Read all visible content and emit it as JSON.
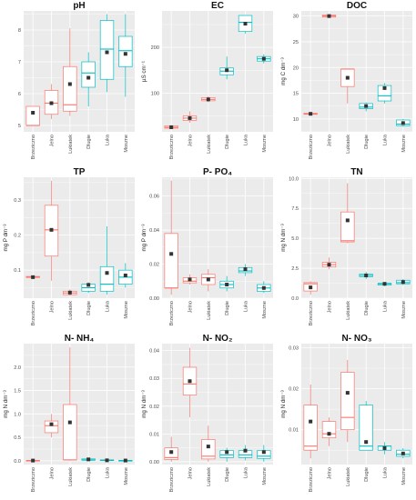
{
  "colors": {
    "red": "#f8766d",
    "teal": "#00bfc4",
    "panel_bg": "#ebebeb",
    "grid_line": "#ffffff",
    "mean_marker": "#333333"
  },
  "chart_data": [
    {
      "type": "box",
      "title": "pH",
      "ylabel": "",
      "ylim": [
        4.8,
        8.6
      ],
      "yticks": [
        5,
        6,
        7,
        8
      ],
      "categories": [
        "Brzeziczno",
        "Jelno",
        "Lukiatek",
        "Dlugie",
        "Luka",
        "Moszne"
      ],
      "series_color_index": [
        0,
        0,
        0,
        1,
        1,
        1
      ],
      "boxes": [
        {
          "min": 5.0,
          "q1": 5.0,
          "median": 5.0,
          "q3": 5.6,
          "max": 5.6,
          "mean": 5.4
        },
        {
          "min": 5.2,
          "q1": 5.35,
          "median": 5.7,
          "q3": 6.1,
          "max": 6.3,
          "mean": 5.7
        },
        {
          "min": 5.3,
          "q1": 5.45,
          "median": 5.65,
          "q3": 6.85,
          "max": 8.05,
          "mean": 6.3
        },
        {
          "min": 5.6,
          "q1": 6.2,
          "median": 6.65,
          "q3": 7.0,
          "max": 7.3,
          "mean": 6.5
        },
        {
          "min": 6.05,
          "q1": 6.45,
          "median": 7.4,
          "q3": 8.3,
          "max": 8.5,
          "mean": 7.3
        },
        {
          "min": 5.9,
          "q1": 6.85,
          "median": 7.35,
          "q3": 7.8,
          "max": 8.5,
          "mean": 7.25
        }
      ]
    },
    {
      "type": "box",
      "title": "EC",
      "ylabel": "µS cm⁻¹",
      "ylim": [
        15,
        280
      ],
      "yticks": [
        100,
        200
      ],
      "categories": [
        "Brzeziczno",
        "Jelno",
        "Lukiatek",
        "Dlugie",
        "Luka",
        "Moszne"
      ],
      "series_color_index": [
        0,
        0,
        0,
        1,
        1,
        1
      ],
      "boxes": [
        {
          "min": 22,
          "q1": 23,
          "median": 25,
          "q3": 28,
          "max": 30,
          "mean": 25
        },
        {
          "min": 35,
          "q1": 40,
          "median": 45,
          "q3": 50,
          "max": 60,
          "mean": 45
        },
        {
          "min": 80,
          "q1": 83,
          "median": 86,
          "q3": 90,
          "max": 93,
          "mean": 86
        },
        {
          "min": 130,
          "q1": 140,
          "median": 148,
          "q3": 155,
          "max": 180,
          "mean": 150
        },
        {
          "min": 230,
          "q1": 235,
          "median": 255,
          "q3": 270,
          "max": 270,
          "mean": 252
        },
        {
          "min": 165,
          "q1": 170,
          "median": 175,
          "q3": 180,
          "max": 185,
          "mean": 175
        }
      ]
    },
    {
      "type": "box",
      "title": "DOC",
      "ylabel": "mg C dm⁻³",
      "ylim": [
        7.5,
        31
      ],
      "yticks": [
        10,
        15,
        20,
        25,
        30
      ],
      "categories": [
        "Brzeziczno",
        "Jelno",
        "Lukiatek",
        "Dlugie",
        "Luka",
        "Moszne"
      ],
      "series_color_index": [
        0,
        0,
        0,
        1,
        1,
        1
      ],
      "boxes": [
        {
          "min": 10.8,
          "q1": 10.9,
          "median": 11.0,
          "q3": 11.1,
          "max": 11.2,
          "mean": 11.0
        },
        {
          "min": 29.6,
          "q1": 29.8,
          "median": 30.0,
          "q3": 30.2,
          "max": 30.3,
          "mean": 30.0
        },
        {
          "min": 13.0,
          "q1": 16.3,
          "median": 19.7,
          "q3": 19.7,
          "max": 19.7,
          "mean": 18.0
        },
        {
          "min": 11.5,
          "q1": 12.0,
          "median": 12.3,
          "q3": 13.0,
          "max": 13.2,
          "mean": 12.5
        },
        {
          "min": 13.0,
          "q1": 13.5,
          "median": 14.5,
          "q3": 16.5,
          "max": 17.0,
          "mean": 16.0
        },
        {
          "min": 8.5,
          "q1": 8.7,
          "median": 9.0,
          "q3": 9.8,
          "max": 10.0,
          "mean": 9.2
        }
      ]
    },
    {
      "type": "box",
      "title": "TP",
      "ylabel": "mg P dm⁻³",
      "ylim": [
        0.02,
        0.365
      ],
      "yticks": [
        0.1,
        0.2,
        0.3
      ],
      "categories": [
        "Brzeziczno",
        "Jelno",
        "Lukiatek",
        "Dlugie",
        "Luka",
        "Moszne"
      ],
      "series_color_index": [
        0,
        0,
        0,
        1,
        1,
        1
      ],
      "boxes": [
        {
          "min": 0.078,
          "q1": 0.079,
          "median": 0.08,
          "q3": 0.082,
          "max": 0.083,
          "mean": 0.08
        },
        {
          "min": 0.07,
          "q1": 0.14,
          "median": 0.215,
          "q3": 0.285,
          "max": 0.355,
          "mean": 0.215
        },
        {
          "min": 0.027,
          "q1": 0.03,
          "median": 0.035,
          "q3": 0.04,
          "max": 0.045,
          "mean": 0.036
        },
        {
          "min": 0.035,
          "q1": 0.04,
          "median": 0.05,
          "q3": 0.06,
          "max": 0.065,
          "mean": 0.058
        },
        {
          "min": 0.03,
          "q1": 0.04,
          "median": 0.06,
          "q3": 0.11,
          "max": 0.225,
          "mean": 0.092
        },
        {
          "min": 0.05,
          "q1": 0.06,
          "median": 0.08,
          "q3": 0.1,
          "max": 0.12,
          "mean": 0.085
        }
      ]
    },
    {
      "type": "box",
      "title": "P- PO₄",
      "ylabel": "mg P dm⁻³",
      "ylim": [
        0,
        0.071
      ],
      "yticks": [
        0.0,
        0.02,
        0.04,
        0.06
      ],
      "categories": [
        "Brzeziczno",
        "Jelno",
        "Lukiatek",
        "Dlugie",
        "Luka",
        "Moszne"
      ],
      "series_color_index": [
        0,
        0,
        0,
        1,
        1,
        1
      ],
      "boxes": [
        {
          "min": 0.002,
          "q1": 0.006,
          "median": 0.006,
          "q3": 0.038,
          "max": 0.069,
          "mean": 0.026
        },
        {
          "min": 0.008,
          "q1": 0.009,
          "median": 0.01,
          "q3": 0.012,
          "max": 0.014,
          "mean": 0.011
        },
        {
          "min": 0.004,
          "q1": 0.008,
          "median": 0.012,
          "q3": 0.014,
          "max": 0.017,
          "mean": 0.011
        },
        {
          "min": 0.004,
          "q1": 0.006,
          "median": 0.008,
          "q3": 0.01,
          "max": 0.013,
          "mean": 0.008
        },
        {
          "min": 0.013,
          "q1": 0.015,
          "median": 0.016,
          "q3": 0.018,
          "max": 0.02,
          "mean": 0.017
        },
        {
          "min": 0.003,
          "q1": 0.004,
          "median": 0.006,
          "q3": 0.008,
          "max": 0.01,
          "mean": 0.006
        }
      ]
    },
    {
      "type": "box",
      "title": "TN",
      "ylabel": "mg N dm⁻³",
      "ylim": [
        0,
        10.1
      ],
      "yticks": [
        0.0,
        2.5,
        5.0,
        7.5,
        10.0
      ],
      "categories": [
        "Brzeziczno",
        "Jelno",
        "Lukiatek",
        "Dlugie",
        "Luka",
        "Moszne"
      ],
      "series_color_index": [
        0,
        0,
        0,
        1,
        1,
        1
      ],
      "boxes": [
        {
          "min": 0.3,
          "q1": 0.6,
          "median": 1.2,
          "q3": 1.3,
          "max": 1.4,
          "mean": 0.9
        },
        {
          "min": 2.4,
          "q1": 2.6,
          "median": 2.8,
          "q3": 3.0,
          "max": 3.4,
          "mean": 2.8
        },
        {
          "min": 4.6,
          "q1": 4.7,
          "median": 4.8,
          "q3": 7.2,
          "max": 9.6,
          "mean": 6.5
        },
        {
          "min": 1.6,
          "q1": 1.8,
          "median": 1.9,
          "q3": 2.0,
          "max": 2.2,
          "mean": 1.9
        },
        {
          "min": 1.0,
          "q1": 1.1,
          "median": 1.2,
          "q3": 1.25,
          "max": 1.3,
          "mean": 1.2
        },
        {
          "min": 1.1,
          "q1": 1.2,
          "median": 1.3,
          "q3": 1.5,
          "max": 1.6,
          "mean": 1.35
        }
      ]
    },
    {
      "type": "box",
      "title": "N- NH₄",
      "ylabel": "mg N dm⁻³",
      "ylim": [
        -0.08,
        2.5
      ],
      "yticks": [
        0.0,
        0.5,
        1.0,
        1.5,
        2.0
      ],
      "categories": [
        "Brzeziczno",
        "Jelno",
        "Lukiatek",
        "Dlugie",
        "Luka",
        "Moszne"
      ],
      "series_color_index": [
        0,
        0,
        0,
        1,
        1,
        1
      ],
      "boxes": [
        {
          "min": 0.0,
          "q1": 0.0,
          "median": 0.005,
          "q3": 0.01,
          "max": 0.015,
          "mean": 0.005
        },
        {
          "min": 0.5,
          "q1": 0.6,
          "median": 0.75,
          "q3": 0.85,
          "max": 1.0,
          "mean": 0.78
        },
        {
          "min": 0.0,
          "q1": 0.02,
          "median": 0.02,
          "q3": 1.2,
          "max": 2.42,
          "mean": 0.82
        },
        {
          "min": 0.0,
          "q1": 0.01,
          "median": 0.02,
          "q3": 0.04,
          "max": 0.06,
          "mean": 0.03
        },
        {
          "min": 0.0,
          "q1": 0.005,
          "median": 0.01,
          "q3": 0.02,
          "max": 0.025,
          "mean": 0.01
        },
        {
          "min": 0.0,
          "q1": 0.003,
          "median": 0.005,
          "q3": 0.01,
          "max": 0.015,
          "mean": 0.006
        }
      ]
    },
    {
      "type": "box",
      "title": "N- NO₂",
      "ylabel": "mg N dm⁻³",
      "ylim": [
        -0.001,
        0.0425
      ],
      "yticks": [
        0.0,
        0.01,
        0.02,
        0.03,
        0.04
      ],
      "categories": [
        "Brzeziczno",
        "Jelno",
        "Lukiatek",
        "Dlugie",
        "Luka",
        "Moszne"
      ],
      "series_color_index": [
        0,
        0,
        0,
        1,
        1,
        1
      ],
      "boxes": [
        {
          "min": 0.0,
          "q1": 0.0008,
          "median": 0.0015,
          "q3": 0.005,
          "max": 0.009,
          "mean": 0.0035
        },
        {
          "min": 0.016,
          "q1": 0.024,
          "median": 0.028,
          "q3": 0.034,
          "max": 0.041,
          "mean": 0.029
        },
        {
          "min": 0.0,
          "q1": 0.001,
          "median": 0.002,
          "q3": 0.008,
          "max": 0.013,
          "mean": 0.0055
        },
        {
          "min": 0.0,
          "q1": 0.0015,
          "median": 0.0025,
          "q3": 0.004,
          "max": 0.005,
          "mean": 0.0035
        },
        {
          "min": 0.0005,
          "q1": 0.0015,
          "median": 0.0025,
          "q3": 0.004,
          "max": 0.006,
          "mean": 0.004
        },
        {
          "min": 0.0,
          "q1": 0.0012,
          "median": 0.002,
          "q3": 0.004,
          "max": 0.006,
          "mean": 0.0035
        }
      ]
    },
    {
      "type": "box",
      "title": "N- NO₃",
      "ylabel": "mg N dm⁻³",
      "ylim": [
        0.0015,
        0.031
      ],
      "yticks": [
        0.01,
        0.02,
        0.03
      ],
      "categories": [
        "Brzeziczno",
        "Jelno",
        "Lukiatek",
        "Dlugie",
        "Luka",
        "Moszne"
      ],
      "series_color_index": [
        0,
        0,
        0,
        1,
        1,
        1
      ],
      "boxes": [
        {
          "min": 0.003,
          "q1": 0.005,
          "median": 0.006,
          "q3": 0.016,
          "max": 0.021,
          "mean": 0.012
        },
        {
          "min": 0.006,
          "q1": 0.008,
          "median": 0.009,
          "q3": 0.012,
          "max": 0.013,
          "mean": 0.009
        },
        {
          "min": 0.007,
          "q1": 0.01,
          "median": 0.013,
          "q3": 0.024,
          "max": 0.027,
          "mean": 0.019
        },
        {
          "min": 0.005,
          "q1": 0.005,
          "median": 0.006,
          "q3": 0.016,
          "max": 0.017,
          "mean": 0.007
        },
        {
          "min": 0.004,
          "q1": 0.005,
          "median": 0.006,
          "q3": 0.006,
          "max": 0.007,
          "mean": 0.0055
        },
        {
          "min": 0.003,
          "q1": 0.0035,
          "median": 0.004,
          "q3": 0.005,
          "max": 0.0055,
          "mean": 0.0042
        }
      ]
    }
  ]
}
